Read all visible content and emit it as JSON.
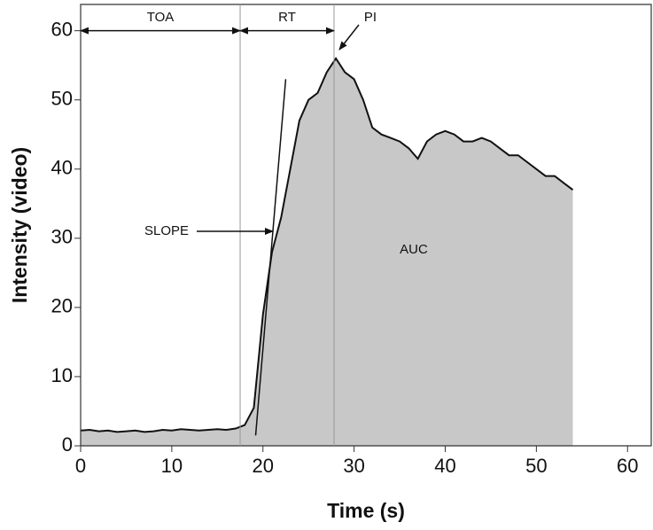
{
  "chart_data": {
    "type": "area",
    "xlabel": "Time (s)",
    "ylabel": "Intensity (video)",
    "x": [
      0,
      1,
      2,
      3,
      4,
      5,
      6,
      7,
      8,
      9,
      10,
      11,
      12,
      13,
      14,
      15,
      16,
      17,
      18,
      19,
      20,
      21,
      22,
      23,
      24,
      25,
      26,
      27,
      28,
      29,
      30,
      31,
      32,
      33,
      34,
      35,
      36,
      37,
      38,
      39,
      40,
      41,
      42,
      43,
      44,
      45,
      46,
      47,
      48,
      49,
      50,
      51,
      52,
      53,
      54
    ],
    "values": [
      2.2,
      2.3,
      2.1,
      2.2,
      2.0,
      2.1,
      2.2,
      2.0,
      2.1,
      2.3,
      2.2,
      2.4,
      2.3,
      2.2,
      2.3,
      2.4,
      2.3,
      2.5,
      3.0,
      5.5,
      19,
      28,
      33,
      40,
      47,
      50,
      51,
      54,
      56,
      54,
      53,
      50,
      46,
      45,
      44.5,
      44,
      43,
      41.5,
      44,
      45,
      45.5,
      45,
      44,
      44,
      44.5,
      44,
      43,
      42,
      42,
      41,
      40,
      39,
      39,
      38,
      37
    ],
    "color": "#c8c8c8",
    "line_color": "#111111",
    "xlim": [
      0,
      62.6
    ],
    "ylim": [
      0,
      63.8
    ],
    "xticks": [
      0,
      10,
      20,
      30,
      40,
      50,
      60
    ],
    "yticks": [
      0,
      10,
      20,
      30,
      40,
      50,
      60
    ],
    "annotations": [
      "TOA",
      "RT",
      "PI",
      "SLOPE",
      "AUC"
    ]
  }
}
